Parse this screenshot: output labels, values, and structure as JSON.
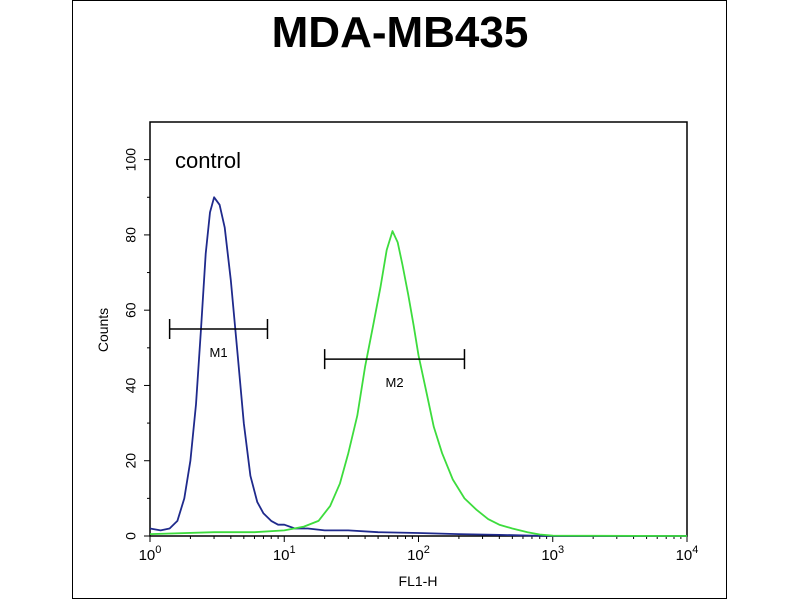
{
  "chart_data": {
    "type": "line",
    "title": "MDA-MB435",
    "xlabel": "FL1-H",
    "ylabel": "Counts",
    "xscale": "log",
    "xlim": [
      1,
      10000
    ],
    "ylim": [
      0,
      110
    ],
    "x_ticks": [
      {
        "base": "10",
        "exp": "0",
        "value": 1
      },
      {
        "base": "10",
        "exp": "1",
        "value": 10
      },
      {
        "base": "10",
        "exp": "2",
        "value": 100
      },
      {
        "base": "10",
        "exp": "3",
        "value": 1000
      },
      {
        "base": "10",
        "exp": "4",
        "value": 10000
      }
    ],
    "y_ticks": [
      "0",
      "20",
      "40",
      "60",
      "80",
      "100"
    ],
    "grid": false,
    "annotation": "control",
    "series": [
      {
        "color": "#1f2a8c",
        "points": [
          [
            1,
            2
          ],
          [
            1.2,
            1.5
          ],
          [
            1.4,
            2
          ],
          [
            1.6,
            4
          ],
          [
            1.8,
            10
          ],
          [
            2.0,
            20
          ],
          [
            2.2,
            35
          ],
          [
            2.4,
            55
          ],
          [
            2.6,
            75
          ],
          [
            2.8,
            86
          ],
          [
            3.0,
            90
          ],
          [
            3.3,
            88
          ],
          [
            3.6,
            82
          ],
          [
            4.0,
            68
          ],
          [
            4.5,
            48
          ],
          [
            5.0,
            30
          ],
          [
            5.6,
            16
          ],
          [
            6.3,
            9
          ],
          [
            7.0,
            6
          ],
          [
            8.0,
            4
          ],
          [
            9.0,
            3
          ],
          [
            10,
            3
          ],
          [
            12,
            2
          ],
          [
            15,
            2
          ],
          [
            20,
            1.5
          ],
          [
            30,
            1.5
          ],
          [
            50,
            1
          ],
          [
            100,
            0.8
          ],
          [
            200,
            0.5
          ],
          [
            400,
            0.3
          ],
          [
            700,
            0.1
          ],
          [
            1000,
            0
          ],
          [
            10000,
            0
          ]
        ]
      },
      {
        "color": "#3ddc3d",
        "points": [
          [
            1,
            0.5
          ],
          [
            3,
            1
          ],
          [
            6,
            1
          ],
          [
            10,
            1.5
          ],
          [
            14,
            2.5
          ],
          [
            18,
            4
          ],
          [
            22,
            8
          ],
          [
            26,
            14
          ],
          [
            30,
            22
          ],
          [
            35,
            32
          ],
          [
            40,
            45
          ],
          [
            46,
            56
          ],
          [
            52,
            66
          ],
          [
            58,
            76
          ],
          [
            64,
            81
          ],
          [
            70,
            78
          ],
          [
            76,
            72
          ],
          [
            84,
            64
          ],
          [
            92,
            56
          ],
          [
            100,
            48
          ],
          [
            115,
            38
          ],
          [
            130,
            29
          ],
          [
            150,
            22
          ],
          [
            180,
            15
          ],
          [
            220,
            10
          ],
          [
            270,
            7
          ],
          [
            330,
            4.5
          ],
          [
            400,
            3
          ],
          [
            500,
            2
          ],
          [
            650,
            1
          ],
          [
            800,
            0.4
          ],
          [
            1000,
            0.1
          ],
          [
            10000,
            0
          ]
        ]
      }
    ],
    "markers": [
      {
        "label": "M1",
        "x_start": 1.4,
        "x_end": 7.5,
        "y": 55
      },
      {
        "label": "M2",
        "x_start": 20,
        "x_end": 220,
        "y": 47
      }
    ]
  }
}
